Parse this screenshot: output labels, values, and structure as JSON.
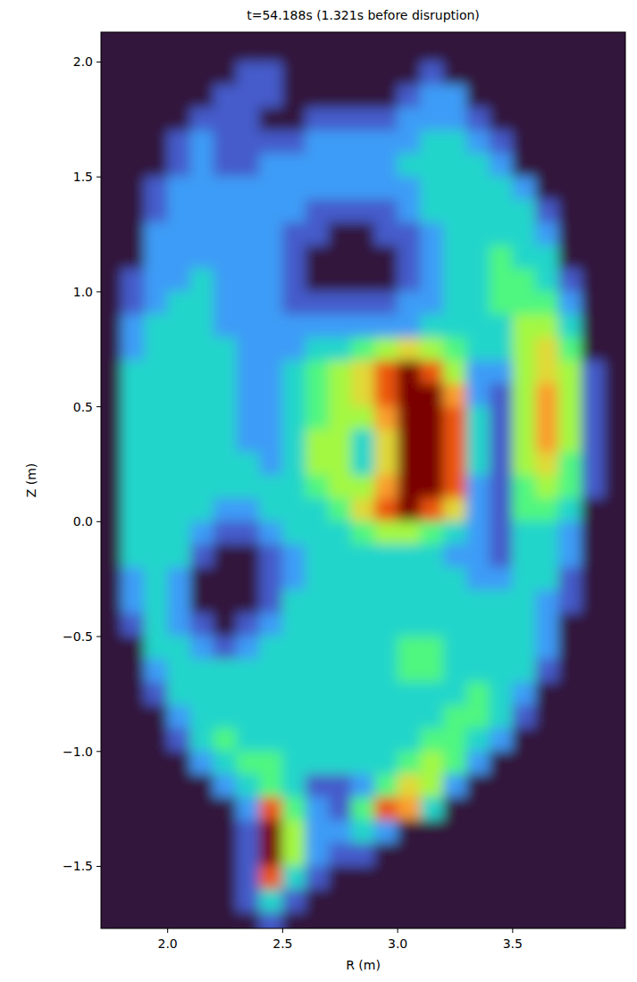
{
  "chart_data": {
    "type": "heatmap",
    "title": "t=54.188s (1.321s before disruption)",
    "x_label": "R (m)",
    "y_label": "Z (m)",
    "xlim": [
      1.71,
      3.99
    ],
    "ylim": [
      -1.77,
      2.13
    ],
    "xticks": [
      {
        "value": 2.0,
        "label": "2.0"
      },
      2.5,
      {
        "value": 3.0,
        "label": "3.0"
      },
      3.5
    ],
    "yticks": [
      {
        "value": -1.5,
        "label": "−1.5"
      },
      {
        "value": -1.0,
        "label": "−1.0"
      },
      {
        "value": -0.5,
        "label": "−0.5"
      },
      {
        "value": 0.0,
        "label": "0.0"
      },
      0.5,
      {
        "value": 1.0,
        "label": "1.0"
      },
      1.5,
      {
        "value": 2.0,
        "label": "2.0"
      }
    ],
    "clim": [
      0,
      9
    ],
    "x": [
      1.75,
      1.85,
      1.95,
      2.05,
      2.15,
      2.25,
      2.35,
      2.45,
      2.55,
      2.65,
      2.75,
      2.85,
      2.95,
      3.05,
      3.15,
      3.25,
      3.35,
      3.45,
      3.55,
      3.65,
      3.75,
      3.85,
      3.95
    ],
    "y": [
      2.15,
      2.05,
      1.95,
      1.85,
      1.75,
      1.65,
      1.55,
      1.45,
      1.35,
      1.25,
      1.15,
      1.05,
      0.95,
      0.85,
      0.75,
      0.65,
      0.55,
      0.45,
      0.35,
      0.25,
      0.15,
      0.05,
      -0.05,
      -0.15,
      -0.25,
      -0.35,
      -0.45,
      -0.55,
      -0.65,
      -0.75,
      -0.85,
      -0.95,
      -1.05,
      -1.15,
      -1.25,
      -1.35,
      -1.45,
      -1.55,
      -1.65,
      -1.75
    ],
    "values": [
      [
        0,
        0,
        0,
        0,
        0,
        0,
        0,
        0,
        0,
        0,
        0,
        0,
        0,
        0,
        0,
        0,
        0,
        0,
        0,
        0,
        0,
        0,
        0
      ],
      [
        0,
        0,
        0,
        0,
        0,
        0,
        0,
        0,
        0,
        0,
        0,
        0,
        0,
        0,
        0,
        0,
        0,
        0,
        0,
        0,
        0,
        0,
        0
      ],
      [
        0,
        0,
        0,
        0,
        0,
        0,
        1,
        1,
        0,
        0,
        0,
        0,
        0,
        0,
        1,
        0,
        0,
        0,
        0,
        0,
        0,
        0,
        0
      ],
      [
        0,
        0,
        0,
        0,
        0,
        1,
        1,
        1,
        0,
        0,
        0,
        0,
        0,
        1,
        2,
        2,
        0,
        0,
        0,
        0,
        0,
        0,
        0
      ],
      [
        0,
        0,
        0,
        0,
        1,
        1,
        1,
        0,
        0,
        1,
        1,
        1,
        1,
        2,
        2,
        2,
        1,
        0,
        0,
        0,
        0,
        0,
        0
      ],
      [
        0,
        0,
        0,
        1,
        2,
        1,
        1,
        1,
        1,
        2,
        2,
        2,
        2,
        2,
        3,
        3,
        2,
        1,
        0,
        0,
        0,
        0,
        0
      ],
      [
        0,
        0,
        0,
        1,
        2,
        1,
        1,
        2,
        2,
        2,
        2,
        2,
        2,
        3,
        3,
        3,
        3,
        2,
        0,
        0,
        0,
        0,
        0
      ],
      [
        0,
        0,
        1,
        2,
        2,
        2,
        2,
        2,
        2,
        2,
        2,
        2,
        2,
        2,
        3,
        3,
        3,
        3,
        2,
        0,
        0,
        0,
        0
      ],
      [
        0,
        0,
        1,
        2,
        2,
        2,
        2,
        2,
        2,
        1,
        1,
        1,
        1,
        2,
        3,
        3,
        3,
        3,
        3,
        1,
        0,
        0,
        0
      ],
      [
        0,
        0,
        2,
        2,
        2,
        2,
        2,
        2,
        1,
        1,
        0,
        0,
        1,
        1,
        2,
        3,
        3,
        3,
        3,
        2,
        0,
        0,
        0
      ],
      [
        0,
        0,
        2,
        2,
        2,
        2,
        2,
        2,
        1,
        0,
        0,
        0,
        0,
        1,
        2,
        3,
        3,
        4,
        3,
        3,
        0,
        0,
        0
      ],
      [
        0,
        1,
        2,
        2,
        3,
        2,
        2,
        2,
        1,
        0,
        0,
        0,
        0,
        1,
        2,
        3,
        3,
        4,
        4,
        3,
        1,
        0,
        0
      ],
      [
        0,
        1,
        2,
        3,
        3,
        2,
        2,
        2,
        1,
        1,
        1,
        1,
        1,
        2,
        2,
        3,
        3,
        4,
        4,
        4,
        2,
        0,
        0
      ],
      [
        0,
        2,
        3,
        3,
        3,
        2,
        2,
        2,
        2,
        2,
        2,
        2,
        2,
        2,
        3,
        3,
        3,
        3,
        5,
        5,
        3,
        0,
        0
      ],
      [
        0,
        2,
        3,
        3,
        3,
        3,
        2,
        2,
        2,
        3,
        3,
        4,
        5,
        6,
        5,
        4,
        3,
        3,
        5,
        6,
        4,
        0,
        0
      ],
      [
        0,
        3,
        3,
        3,
        3,
        3,
        2,
        2,
        3,
        4,
        5,
        6,
        8,
        9,
        8,
        5,
        2,
        2,
        5,
        6,
        5,
        1,
        0
      ],
      [
        0,
        3,
        3,
        3,
        3,
        3,
        2,
        2,
        3,
        4,
        5,
        6,
        8,
        9,
        9,
        7,
        2,
        1,
        5,
        7,
        5,
        1,
        0
      ],
      [
        0,
        3,
        3,
        3,
        3,
        3,
        2,
        2,
        3,
        4,
        5,
        5,
        7,
        9,
        9,
        8,
        3,
        1,
        5,
        7,
        5,
        1,
        0
      ],
      [
        0,
        3,
        3,
        3,
        3,
        3,
        2,
        2,
        3,
        5,
        5,
        3,
        6,
        9,
        9,
        8,
        3,
        1,
        5,
        7,
        5,
        1,
        0
      ],
      [
        0,
        3,
        3,
        3,
        3,
        3,
        3,
        2,
        3,
        5,
        5,
        3,
        6,
        9,
        9,
        8,
        3,
        1,
        5,
        6,
        4,
        1,
        0
      ],
      [
        0,
        3,
        3,
        3,
        3,
        3,
        3,
        3,
        3,
        4,
        5,
        5,
        7,
        9,
        9,
        8,
        2,
        1,
        4,
        5,
        4,
        1,
        0
      ],
      [
        0,
        3,
        3,
        3,
        3,
        2,
        2,
        3,
        3,
        3,
        4,
        6,
        8,
        9,
        8,
        6,
        2,
        1,
        4,
        4,
        3,
        0,
        0
      ],
      [
        0,
        3,
        3,
        3,
        2,
        1,
        1,
        2,
        3,
        3,
        3,
        4,
        5,
        5,
        4,
        3,
        2,
        1,
        3,
        3,
        2,
        0,
        0
      ],
      [
        0,
        3,
        3,
        3,
        1,
        0,
        0,
        1,
        2,
        3,
        3,
        3,
        3,
        3,
        3,
        2,
        2,
        1,
        3,
        3,
        2,
        0,
        0
      ],
      [
        0,
        2,
        3,
        2,
        0,
        0,
        0,
        1,
        2,
        3,
        3,
        3,
        3,
        3,
        3,
        3,
        2,
        2,
        3,
        3,
        1,
        0,
        0
      ],
      [
        0,
        2,
        3,
        2,
        0,
        0,
        0,
        1,
        3,
        3,
        3,
        3,
        3,
        3,
        3,
        3,
        3,
        3,
        3,
        2,
        1,
        0,
        0
      ],
      [
        0,
        1,
        3,
        2,
        1,
        0,
        1,
        2,
        3,
        3,
        3,
        3,
        3,
        3,
        3,
        3,
        3,
        3,
        3,
        2,
        0,
        0,
        0
      ],
      [
        0,
        0,
        3,
        3,
        2,
        1,
        2,
        3,
        3,
        3,
        3,
        3,
        3,
        4,
        4,
        3,
        3,
        3,
        3,
        2,
        0,
        0,
        0
      ],
      [
        0,
        0,
        2,
        3,
        3,
        3,
        3,
        3,
        3,
        3,
        3,
        3,
        3,
        4,
        4,
        3,
        3,
        3,
        3,
        1,
        0,
        0,
        0
      ],
      [
        0,
        0,
        1,
        3,
        3,
        3,
        3,
        3,
        3,
        3,
        3,
        3,
        3,
        3,
        3,
        3,
        4,
        3,
        2,
        0,
        0,
        0,
        0
      ],
      [
        0,
        0,
        0,
        2,
        3,
        3,
        3,
        3,
        3,
        3,
        3,
        3,
        3,
        3,
        3,
        4,
        4,
        3,
        1,
        0,
        0,
        0,
        0
      ],
      [
        0,
        0,
        0,
        1,
        3,
        4,
        3,
        3,
        3,
        3,
        3,
        3,
        3,
        3,
        4,
        4,
        3,
        2,
        0,
        0,
        0,
        0,
        0
      ],
      [
        0,
        0,
        0,
        0,
        2,
        3,
        4,
        4,
        3,
        3,
        3,
        3,
        3,
        4,
        5,
        4,
        2,
        0,
        0,
        0,
        0,
        0,
        0
      ],
      [
        0,
        0,
        0,
        0,
        0,
        2,
        3,
        4,
        3,
        1,
        1,
        2,
        4,
        6,
        5,
        2,
        0,
        0,
        0,
        0,
        0,
        0,
        0
      ],
      [
        0,
        0,
        0,
        0,
        0,
        0,
        2,
        8,
        4,
        2,
        1,
        4,
        8,
        7,
        3,
        0,
        0,
        0,
        0,
        0,
        0,
        0,
        0
      ],
      [
        0,
        0,
        0,
        0,
        0,
        0,
        1,
        9,
        5,
        2,
        2,
        3,
        2,
        0,
        0,
        0,
        0,
        0,
        0,
        0,
        0,
        0,
        0
      ],
      [
        0,
        0,
        0,
        0,
        0,
        0,
        1,
        9,
        5,
        2,
        1,
        1,
        0,
        0,
        0,
        0,
        0,
        0,
        0,
        0,
        0,
        0,
        0
      ],
      [
        0,
        0,
        0,
        0,
        0,
        0,
        1,
        8,
        3,
        1,
        0,
        0,
        0,
        0,
        0,
        0,
        0,
        0,
        0,
        0,
        0,
        0,
        0
      ],
      [
        0,
        0,
        0,
        0,
        0,
        0,
        1,
        3,
        1,
        0,
        0,
        0,
        0,
        0,
        0,
        0,
        0,
        0,
        0,
        0,
        0,
        0,
        0
      ],
      [
        0,
        0,
        0,
        0,
        0,
        0,
        0,
        1,
        0,
        0,
        0,
        0,
        0,
        0,
        0,
        0,
        0,
        0,
        0,
        0,
        0,
        0,
        0
      ]
    ]
  }
}
